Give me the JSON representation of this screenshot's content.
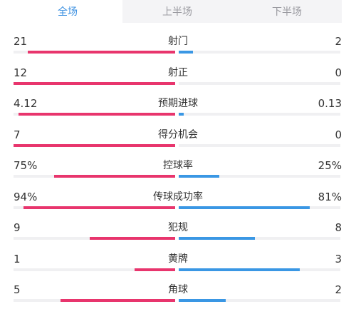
{
  "tabs": [
    {
      "label": "全场",
      "active": true
    },
    {
      "label": "上半场",
      "active": false
    },
    {
      "label": "下半场",
      "active": false
    }
  ],
  "colors": {
    "home_bar": "#e8356d",
    "away_bar": "#3a97e4",
    "active_tab": "#3a8fe0",
    "track": "#f0f0f2"
  },
  "stats": [
    {
      "label": "射门",
      "home": "21",
      "away": "2",
      "home_fill": 0.91,
      "away_fill": 0.09
    },
    {
      "label": "射正",
      "home": "12",
      "away": "0",
      "home_fill": 1.0,
      "away_fill": 0.0
    },
    {
      "label": "预期进球",
      "home": "4.12",
      "away": "0.13",
      "home_fill": 0.97,
      "away_fill": 0.03
    },
    {
      "label": "得分机会",
      "home": "7",
      "away": "0",
      "home_fill": 1.0,
      "away_fill": 0.0
    },
    {
      "label": "控球率",
      "home": "75%",
      "away": "25%",
      "home_fill": 0.75,
      "away_fill": 0.25
    },
    {
      "label": "传球成功率",
      "home": "94%",
      "away": "81%",
      "home_fill": 0.94,
      "away_fill": 0.81
    },
    {
      "label": "犯规",
      "home": "9",
      "away": "8",
      "home_fill": 0.53,
      "away_fill": 0.47
    },
    {
      "label": "黄牌",
      "home": "1",
      "away": "3",
      "home_fill": 0.25,
      "away_fill": 0.75
    },
    {
      "label": "角球",
      "home": "5",
      "away": "2",
      "home_fill": 0.71,
      "away_fill": 0.29
    }
  ]
}
